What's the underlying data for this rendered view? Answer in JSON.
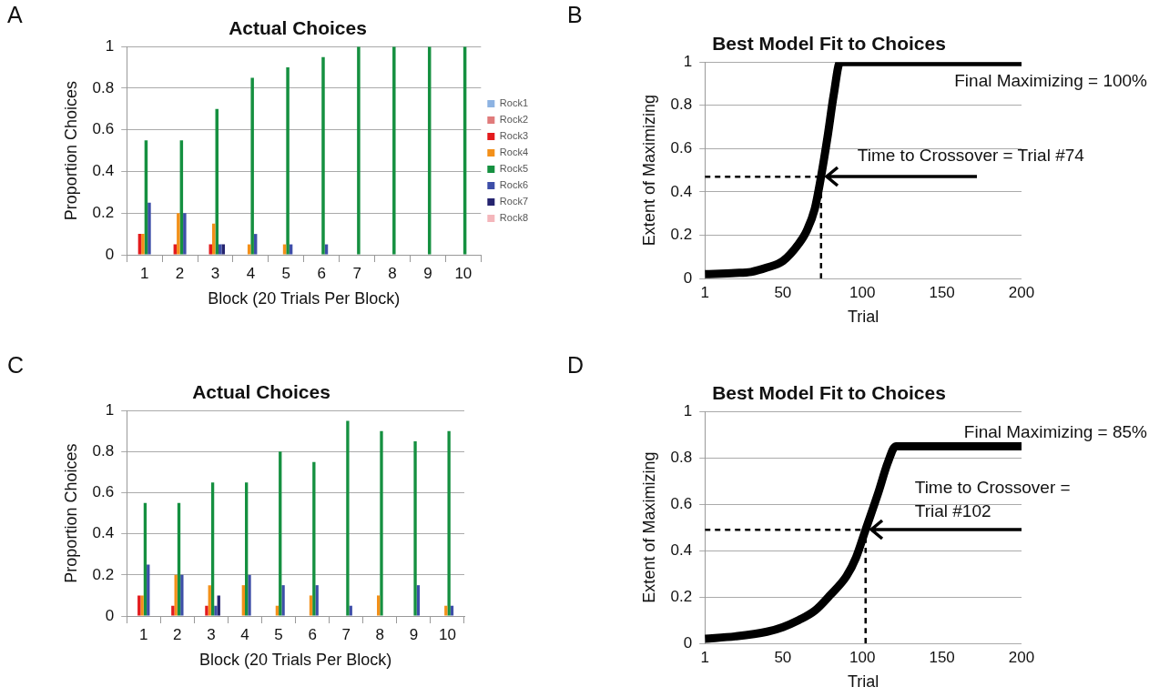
{
  "chart_data": [
    {
      "type": "bar",
      "title": "Actual Choices",
      "xlabel": "Block (20 Trials Per Block)",
      "ylabel": "Proportion Choices",
      "categories": [
        "1",
        "2",
        "3",
        "4",
        "5",
        "6",
        "7",
        "8",
        "9",
        "10"
      ],
      "ylim": [
        0,
        1
      ],
      "yticks": [
        0,
        0.2,
        0.4,
        0.6,
        0.8,
        1
      ],
      "grid": "y",
      "legend": "right",
      "annotations": [
        "A"
      ],
      "series": [
        {
          "name": "Rock1",
          "color": "#8db3e2",
          "values": [
            0,
            0,
            0,
            0,
            0,
            0,
            0,
            0,
            0,
            0
          ]
        },
        {
          "name": "Rock2",
          "color": "#e07b7b",
          "values": [
            0,
            0,
            0,
            0,
            0,
            0,
            0,
            0,
            0,
            0
          ]
        },
        {
          "name": "Rock3",
          "color": "#e31a1c",
          "values": [
            0.1,
            0.05,
            0.05,
            0,
            0,
            0,
            0,
            0,
            0,
            0
          ]
        },
        {
          "name": "Rock4",
          "color": "#f39019",
          "values": [
            0.1,
            0.2,
            0.15,
            0.05,
            0.05,
            0,
            0,
            0,
            0,
            0
          ]
        },
        {
          "name": "Rock5",
          "color": "#159040",
          "values": [
            0.55,
            0.55,
            0.7,
            0.85,
            0.9,
            0.95,
            1,
            1,
            1,
            1
          ]
        },
        {
          "name": "Rock6",
          "color": "#3d4ea8",
          "values": [
            0.25,
            0.2,
            0.05,
            0.1,
            0.05,
            0.05,
            0,
            0,
            0,
            0
          ]
        },
        {
          "name": "Rock7",
          "color": "#25246f",
          "values": [
            0,
            0,
            0.05,
            0,
            0,
            0,
            0,
            0,
            0,
            0
          ]
        },
        {
          "name": "Rock8",
          "color": "#f4b6bb",
          "values": [
            0,
            0,
            0,
            0,
            0,
            0,
            0,
            0,
            0,
            0
          ]
        }
      ]
    },
    {
      "type": "line",
      "title": "Best Model Fit to Choices",
      "xlabel": "Trial",
      "ylabel": "Extent of Maximizing",
      "xlim": [
        1,
        200
      ],
      "xticks": [
        1,
        50,
        100,
        150,
        200
      ],
      "ylim": [
        0,
        1
      ],
      "yticks": [
        0,
        0.2,
        0.4,
        0.6,
        0.8,
        1
      ],
      "grid": "y",
      "marker": "none",
      "line_style": "solid",
      "annotations": [
        "B",
        "Final Maximizing = 100%",
        {
          "text": "Time to Crossover = Trial #74",
          "x": 74,
          "y": 0.47
        }
      ],
      "series": [
        {
          "color": "#000000",
          "x": [
            1,
            20,
            30,
            40,
            50,
            60,
            65,
            70,
            74,
            78,
            82,
            86,
            200
          ],
          "values": [
            0.02,
            0.025,
            0.03,
            0.05,
            0.08,
            0.16,
            0.22,
            0.32,
            0.47,
            0.65,
            0.85,
            1,
            1
          ]
        },
        {
          "color": "#000000",
          "line_style": "dashed",
          "x": [
            1,
            74
          ],
          "values": [
            0.47,
            0.47
          ]
        },
        {
          "color": "#000000",
          "line_style": "dashed",
          "x": [
            74,
            74
          ],
          "values": [
            0,
            0.47
          ]
        }
      ]
    },
    {
      "type": "bar",
      "title": "Actual Choices",
      "xlabel": "Block (20 Trials Per Block)",
      "ylabel": "Proportion Choices",
      "categories": [
        "1",
        "2",
        "3",
        "4",
        "5",
        "6",
        "7",
        "8",
        "9",
        "10"
      ],
      "ylim": [
        0,
        1
      ],
      "yticks": [
        0,
        0.2,
        0.4,
        0.6,
        0.8,
        1
      ],
      "grid": "y",
      "annotations": [
        "C"
      ],
      "series": [
        {
          "color": "#8db3e2",
          "values": [
            0,
            0,
            0,
            0,
            0,
            0,
            0,
            0,
            0,
            0
          ]
        },
        {
          "color": "#e07b7b",
          "values": [
            0,
            0,
            0,
            0,
            0,
            0,
            0,
            0,
            0,
            0
          ]
        },
        {
          "color": "#e31a1c",
          "values": [
            0.1,
            0.05,
            0.05,
            0,
            0,
            0,
            0,
            0,
            0,
            0
          ]
        },
        {
          "color": "#f39019",
          "values": [
            0.1,
            0.2,
            0.15,
            0.15,
            0.05,
            0.1,
            0,
            0.1,
            0,
            0.05
          ]
        },
        {
          "color": "#159040",
          "values": [
            0.55,
            0.55,
            0.65,
            0.65,
            0.8,
            0.75,
            0.95,
            0.9,
            0.85,
            0.9
          ]
        },
        {
          "color": "#3d4ea8",
          "values": [
            0.25,
            0.2,
            0.05,
            0.2,
            0.15,
            0.15,
            0.05,
            0,
            0.15,
            0.05
          ]
        },
        {
          "color": "#25246f",
          "values": [
            0,
            0,
            0.1,
            0,
            0,
            0,
            0,
            0,
            0,
            0
          ]
        },
        {
          "color": "#f4b6bb",
          "values": [
            0,
            0,
            0,
            0,
            0,
            0,
            0,
            0,
            0,
            0
          ]
        }
      ]
    },
    {
      "type": "line",
      "title": "Best Model Fit to Choices",
      "xlabel": "Trial",
      "ylabel": "Extent of Maximizing",
      "xlim": [
        1,
        200
      ],
      "xticks": [
        1,
        50,
        100,
        150,
        200
      ],
      "ylim": [
        0,
        1
      ],
      "yticks": [
        0,
        0.2,
        0.4,
        0.6,
        0.8,
        1
      ],
      "grid": "y",
      "marker": "none",
      "line_style": "solid",
      "annotations": [
        "D",
        "Final Maximizing = 85%",
        {
          "text": "Time to Crossover = Trial #102",
          "x": 102,
          "y": 0.49
        }
      ],
      "series": [
        {
          "color": "#000000",
          "x": [
            1,
            20,
            40,
            50,
            60,
            70,
            80,
            90,
            96,
            102,
            110,
            116,
            121,
            200
          ],
          "values": [
            0.02,
            0.03,
            0.05,
            0.07,
            0.1,
            0.14,
            0.21,
            0.29,
            0.37,
            0.49,
            0.65,
            0.78,
            0.85,
            0.85
          ]
        },
        {
          "color": "#000000",
          "line_style": "dashed",
          "x": [
            1,
            102
          ],
          "values": [
            0.49,
            0.49
          ]
        },
        {
          "color": "#000000",
          "line_style": "dashed",
          "x": [
            102,
            102
          ],
          "values": [
            0,
            0.49
          ]
        }
      ]
    }
  ]
}
